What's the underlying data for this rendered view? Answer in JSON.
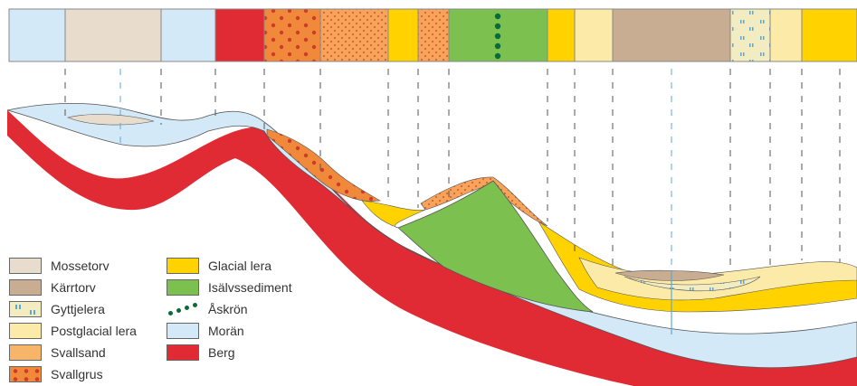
{
  "colors": {
    "mossetorv": "#e8dccd",
    "karrtorv": "#c9ad92",
    "gyttjelera": "#f3ecc0",
    "postglacial_lera": "#fbeaa8",
    "svallsand": "#f7b56a",
    "svallgrus": "#f08a3a",
    "glacial_lera": "#ffd200",
    "isalvssediment": "#7cc04f",
    "askron": "#0a6b3a",
    "moran": "#d4e9f7",
    "berg": "#e02b35"
  },
  "legend": {
    "items": [
      {
        "key": "mossetorv",
        "label": "Mossetorv"
      },
      {
        "key": "karrtorv",
        "label": "Kärrtorv"
      },
      {
        "key": "gyttjelera",
        "label": "Gyttjelera"
      },
      {
        "key": "postglacial_lera",
        "label": "Postglacial lera"
      },
      {
        "key": "svallsand",
        "label": "Svallsand"
      },
      {
        "key": "svallgrus",
        "label": "Svallgrus"
      },
      {
        "key": "glacial_lera",
        "label": "Glacial lera"
      },
      {
        "key": "isalvssediment",
        "label": "Isälvssediment"
      },
      {
        "key": "askron",
        "label": "Åskrön"
      },
      {
        "key": "moran",
        "label": "Morän"
      },
      {
        "key": "berg",
        "label": "Berg"
      }
    ]
  },
  "surface_map": {
    "strip": [
      "moran",
      "mossetorv",
      "moran",
      "berg",
      "svallgrus",
      "svallsand",
      "glacial_lera",
      "svallgrus",
      "isalvssediment",
      "glacial_lera",
      "postglacial_lera",
      "karrtorv",
      "gyttjelera",
      "postglacial_lera",
      "glacial_lera",
      "glacial_lera"
    ]
  }
}
